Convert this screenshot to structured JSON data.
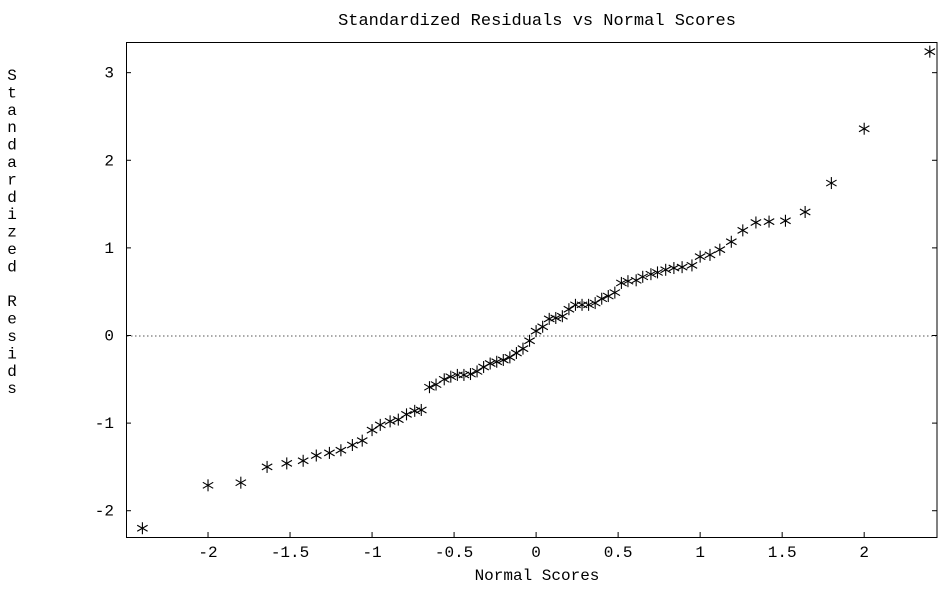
{
  "chart_data": {
    "type": "scatter",
    "title": "Standardized Residuals vs Normal Scores",
    "xlabel": "Normal Scores",
    "ylabel": "Standardized Resids",
    "xlim": [
      -2.5,
      2.45
    ],
    "ylim": [
      -2.3,
      3.35
    ],
    "xticks": [
      {
        "value": -2,
        "label": "-2"
      },
      {
        "value": -1.5,
        "label": "-1.5"
      },
      {
        "value": -1,
        "label": "-1"
      },
      {
        "value": -0.5,
        "label": "-0.5"
      },
      {
        "value": 0,
        "label": "0"
      },
      {
        "value": 0.5,
        "label": "0.5"
      },
      {
        "value": 1,
        "label": "1"
      },
      {
        "value": 1.5,
        "label": "1.5"
      },
      {
        "value": 2,
        "label": "2"
      }
    ],
    "yticks": [
      {
        "value": -2,
        "label": "-2"
      },
      {
        "value": -1,
        "label": "-1"
      },
      {
        "value": 0,
        "label": "0"
      },
      {
        "value": 1,
        "label": "1"
      },
      {
        "value": 2,
        "label": "2"
      },
      {
        "value": 3,
        "label": "3"
      }
    ],
    "reference_line_y": 0,
    "marker": "asterisk",
    "grid": false,
    "points": [
      {
        "x": -2.4,
        "y": -2.2
      },
      {
        "x": -2.0,
        "y": -1.71
      },
      {
        "x": -1.8,
        "y": -1.68
      },
      {
        "x": -1.64,
        "y": -1.5
      },
      {
        "x": -1.52,
        "y": -1.46
      },
      {
        "x": -1.42,
        "y": -1.43
      },
      {
        "x": -1.34,
        "y": -1.37
      },
      {
        "x": -1.26,
        "y": -1.34
      },
      {
        "x": -1.19,
        "y": -1.31
      },
      {
        "x": -1.12,
        "y": -1.25
      },
      {
        "x": -1.06,
        "y": -1.2
      },
      {
        "x": -1.0,
        "y": -1.08
      },
      {
        "x": -0.95,
        "y": -1.02
      },
      {
        "x": -0.89,
        "y": -0.98
      },
      {
        "x": -0.84,
        "y": -0.96
      },
      {
        "x": -0.79,
        "y": -0.9
      },
      {
        "x": -0.74,
        "y": -0.86
      },
      {
        "x": -0.7,
        "y": -0.85
      },
      {
        "x": -0.65,
        "y": -0.59
      },
      {
        "x": -0.61,
        "y": -0.56
      },
      {
        "x": -0.56,
        "y": -0.5
      },
      {
        "x": -0.52,
        "y": -0.47
      },
      {
        "x": -0.48,
        "y": -0.45
      },
      {
        "x": -0.44,
        "y": -0.45
      },
      {
        "x": -0.4,
        "y": -0.44
      },
      {
        "x": -0.36,
        "y": -0.41
      },
      {
        "x": -0.32,
        "y": -0.36
      },
      {
        "x": -0.28,
        "y": -0.32
      },
      {
        "x": -0.24,
        "y": -0.3
      },
      {
        "x": -0.2,
        "y": -0.28
      },
      {
        "x": -0.16,
        "y": -0.25
      },
      {
        "x": -0.12,
        "y": -0.2
      },
      {
        "x": -0.08,
        "y": -0.15
      },
      {
        "x": -0.04,
        "y": -0.06
      },
      {
        "x": 0.0,
        "y": 0.05
      },
      {
        "x": 0.04,
        "y": 0.1
      },
      {
        "x": 0.08,
        "y": 0.19
      },
      {
        "x": 0.12,
        "y": 0.2
      },
      {
        "x": 0.16,
        "y": 0.22
      },
      {
        "x": 0.2,
        "y": 0.3
      },
      {
        "x": 0.24,
        "y": 0.35
      },
      {
        "x": 0.28,
        "y": 0.35
      },
      {
        "x": 0.32,
        "y": 0.35
      },
      {
        "x": 0.36,
        "y": 0.37
      },
      {
        "x": 0.4,
        "y": 0.42
      },
      {
        "x": 0.44,
        "y": 0.45
      },
      {
        "x": 0.48,
        "y": 0.49
      },
      {
        "x": 0.52,
        "y": 0.6
      },
      {
        "x": 0.56,
        "y": 0.62
      },
      {
        "x": 0.61,
        "y": 0.63
      },
      {
        "x": 0.65,
        "y": 0.67
      },
      {
        "x": 0.7,
        "y": 0.7
      },
      {
        "x": 0.74,
        "y": 0.72
      },
      {
        "x": 0.79,
        "y": 0.75
      },
      {
        "x": 0.84,
        "y": 0.77
      },
      {
        "x": 0.89,
        "y": 0.78
      },
      {
        "x": 0.95,
        "y": 0.8
      },
      {
        "x": 1.0,
        "y": 0.9
      },
      {
        "x": 1.06,
        "y": 0.92
      },
      {
        "x": 1.12,
        "y": 0.98
      },
      {
        "x": 1.19,
        "y": 1.07
      },
      {
        "x": 1.26,
        "y": 1.2
      },
      {
        "x": 1.34,
        "y": 1.29
      },
      {
        "x": 1.42,
        "y": 1.3
      },
      {
        "x": 1.52,
        "y": 1.31
      },
      {
        "x": 1.64,
        "y": 1.41
      },
      {
        "x": 1.8,
        "y": 1.74
      },
      {
        "x": 2.0,
        "y": 2.36
      },
      {
        "x": 2.4,
        "y": 3.24
      }
    ]
  }
}
